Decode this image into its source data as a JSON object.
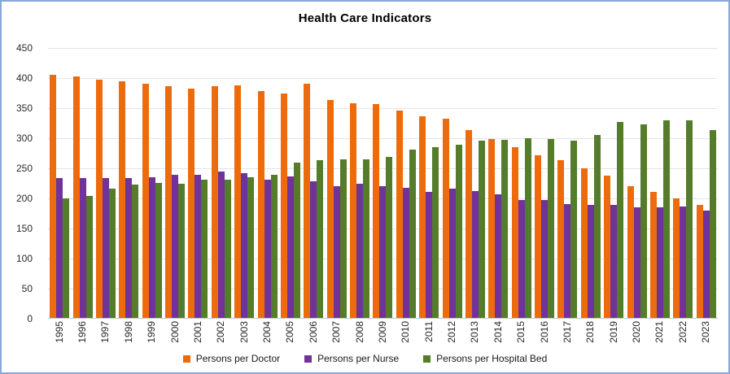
{
  "window": {
    "border_color": "#89a7db",
    "background_color": "#ffffff",
    "gridline_color": "#e4e4e4",
    "axisline_color": "#c9c9c9",
    "tick_label_color": "#262626"
  },
  "chart_data": {
    "type": "bar",
    "title": "Health Care Indicators",
    "xlabel": "",
    "ylabel": "",
    "ylim": [
      0,
      450
    ],
    "ytick_step": 50,
    "yticks": [
      "0",
      "50",
      "100",
      "150",
      "200",
      "250",
      "300",
      "350",
      "400",
      "450"
    ],
    "grid": true,
    "legend_position": "bottom",
    "categories": [
      "1995",
      "1996",
      "1997",
      "1998",
      "1999",
      "2000",
      "2001",
      "2002",
      "2003",
      "2004",
      "2005",
      "2006",
      "2007",
      "2008",
      "2009",
      "2010",
      "2011",
      "2012",
      "2013",
      "2014",
      "2015",
      "2016",
      "2017",
      "2018",
      "2019",
      "2020",
      "2021",
      "2022",
      "2023"
    ],
    "series": [
      {
        "name": "Persons per Doctor",
        "color": "#ed6b0c",
        "values": [
          405,
          402,
          397,
          394,
          390,
          386,
          382,
          386,
          388,
          378,
          374,
          391,
          363,
          358,
          356,
          345,
          336,
          332,
          313,
          298,
          284,
          271,
          263,
          250,
          237,
          219,
          210,
          199,
          188
        ]
      },
      {
        "name": "Persons per Nurse",
        "color": "#703399",
        "values": [
          233,
          233,
          233,
          233,
          234,
          238,
          238,
          244,
          241,
          231,
          236,
          228,
          219,
          224,
          220,
          217,
          210,
          215,
          212,
          206,
          197,
          196,
          190,
          188,
          188,
          185,
          185,
          186,
          179
        ]
      },
      {
        "name": "Persons per Hospital Bed",
        "color": "#547c2b",
        "values": [
          199,
          203,
          216,
          222,
          225,
          224,
          230,
          230,
          235,
          238,
          259,
          263,
          264,
          265,
          268,
          281,
          285,
          289,
          295,
          297,
          300,
          298,
          296,
          305,
          327,
          322,
          330,
          330,
          313
        ]
      }
    ]
  }
}
